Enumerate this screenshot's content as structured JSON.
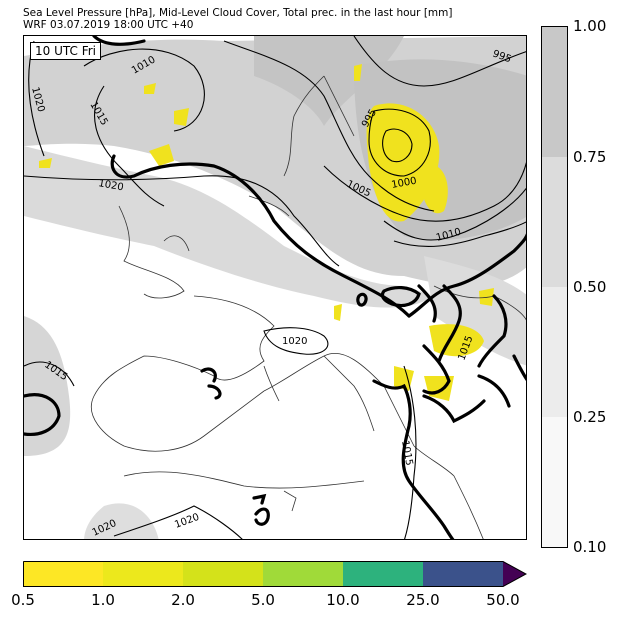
{
  "title_line1": "Sea Level Pressure [hPa], Mid-Level Cloud Cover, Total prec. in the last hour [mm]",
  "title_line2": "WRF 03.07.2019 18:00 UTC +40",
  "valid_time": "10 UTC Fri",
  "isobar_labels": [
    "995",
    "1010",
    "1020",
    "1015",
    "995",
    "1000",
    "1005",
    "1020",
    "1010",
    "1020",
    "1015",
    "1015",
    "1015",
    "1020",
    "1020"
  ],
  "cloud_cover_legend": {
    "ticks": [
      "1.00",
      "0.75",
      "0.50",
      "0.25",
      "0.10"
    ],
    "colors": [
      "#c8c8c8",
      "#dcdcdc",
      "#ececec",
      "#f8f8f8"
    ]
  },
  "precip_legend": {
    "ticks": [
      "0.5",
      "1.0",
      "2.0",
      "5.0",
      "10.0",
      "25.0",
      "50.0"
    ],
    "colors": [
      "#fde725",
      "#ece81c",
      "#d4e21a",
      "#a0da39",
      "#2db27d",
      "#3b528b",
      "#440154"
    ]
  }
}
